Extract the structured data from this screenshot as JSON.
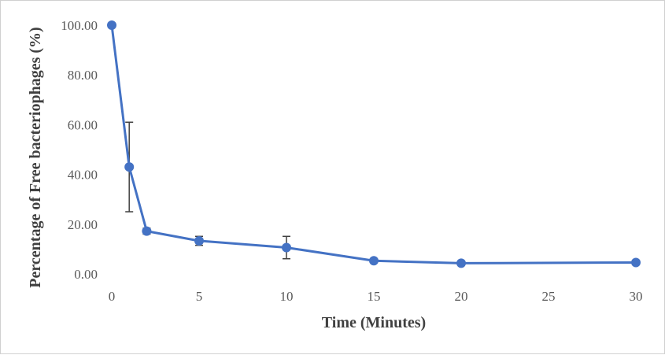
{
  "chart_data": {
    "type": "line",
    "title": "",
    "xlabel": "Time (Minutes)",
    "ylabel": "Percentage of Free bacteriophages (%)",
    "xlim": [
      0,
      30
    ],
    "ylim": [
      0,
      100
    ],
    "x_ticks": [
      "0",
      "5",
      "10",
      "15",
      "20",
      "25",
      "30"
    ],
    "y_ticks": [
      "0.00",
      "20.00",
      "40.00",
      "60.00",
      "80.00",
      "100.00"
    ],
    "grid": false,
    "legend": "none",
    "color": "#4472C4",
    "series": [
      {
        "x": [
          0,
          1,
          2,
          5,
          10,
          15,
          20,
          30
        ],
        "y": [
          100.0,
          43.0,
          17.2,
          13.3,
          10.6,
          5.3,
          4.3,
          4.6
        ],
        "error": [
          0,
          18.0,
          1.2,
          1.8,
          4.5,
          0.6,
          0.5,
          0.4
        ]
      }
    ]
  }
}
